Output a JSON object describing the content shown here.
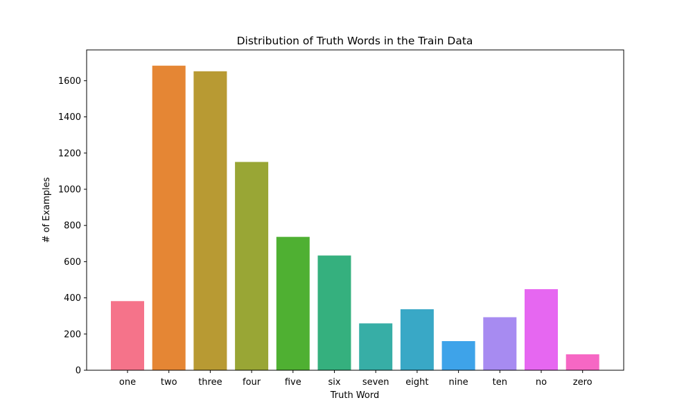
{
  "chart_data": {
    "type": "bar",
    "title": "Distribution of Truth Words in the Train Data",
    "xlabel": "Truth Word",
    "ylabel": "# of Examples",
    "categories": [
      "one",
      "two",
      "three",
      "four",
      "five",
      "six",
      "seven",
      "eight",
      "nine",
      "ten",
      "no",
      "zero"
    ],
    "values": [
      382,
      1683,
      1652,
      1151,
      737,
      634,
      259,
      337,
      161,
      293,
      448,
      88
    ],
    "colors": [
      "#f5738a",
      "#e58634",
      "#b89a33",
      "#99a635",
      "#4fb032",
      "#35b07e",
      "#37aea6",
      "#39a8c6",
      "#3ea3e9",
      "#a78bf1",
      "#e667f1",
      "#f667c4"
    ],
    "ylim": [
      0,
      1770
    ],
    "yticks": [
      0,
      200,
      400,
      600,
      800,
      1000,
      1200,
      1400,
      1600
    ],
    "ytick_labels": [
      "0",
      "200",
      "400",
      "600",
      "800",
      "1000",
      "1200",
      "1400",
      "1600"
    ],
    "grid": false,
    "legend": "none"
  }
}
